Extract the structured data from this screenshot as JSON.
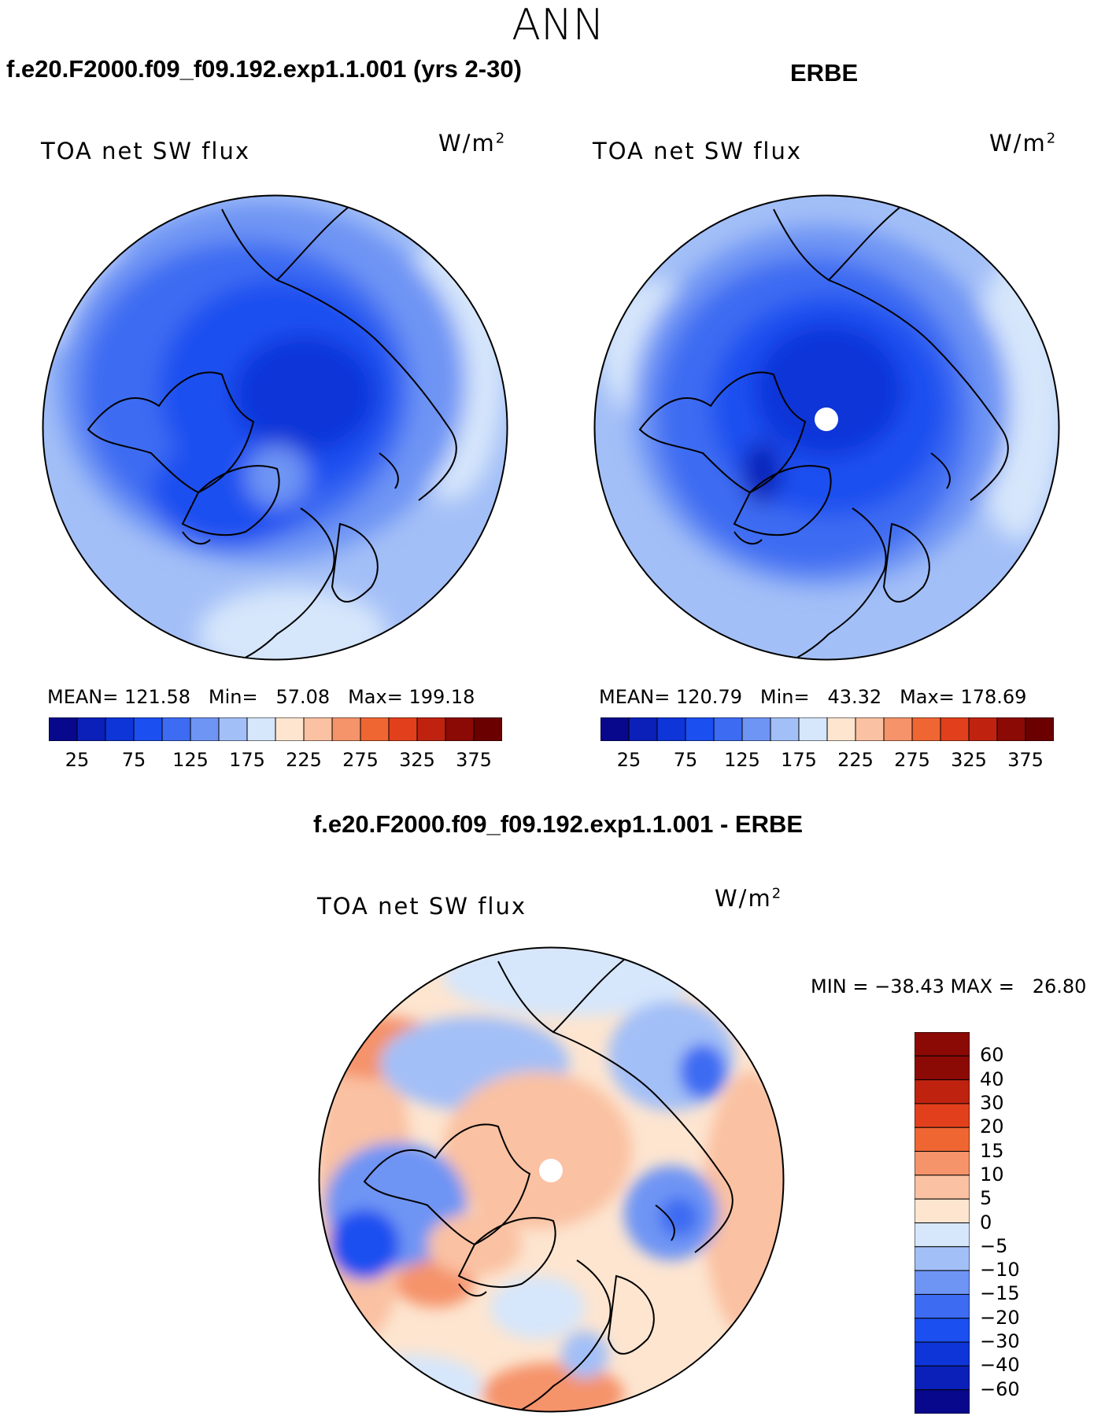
{
  "page": {
    "season": "ANN",
    "diff_title": "f.e20.F2000.f09_f09.192.exp1.1.001 - ERBE"
  },
  "panels": [
    {
      "title": "f.e20.F2000.f09_f09.192.exp1.1.001 (yrs 2-30)",
      "variable": "TOA net SW flux",
      "units": "W/m",
      "units_sup": "2",
      "mean_label": "MEAN=",
      "mean": "121.58",
      "min_label": "Min=",
      "min": "57.08",
      "max_label": "Max=",
      "max": "199.18"
    },
    {
      "title": "ERBE",
      "variable": "TOA net SW flux",
      "units": "W/m",
      "units_sup": "2",
      "mean_label": "MEAN=",
      "mean": "120.79",
      "min_label": "Min=",
      "min": "43.32",
      "max_label": "Max=",
      "max": "178.69"
    }
  ],
  "diff_panel": {
    "variable": "TOA net SW flux",
    "units": "W/m",
    "units_sup": "2",
    "minmax_text": "MIN = −38.43 MAX =   26.80"
  },
  "chart_data": [
    {
      "type": "heatmap",
      "projection": "north polar stereographic",
      "title": "f.e20.F2000.f09_f09.192.exp1.1.001 (yrs 2-30)",
      "subtitle": "TOA net SW flux",
      "units": "W/m2",
      "stats": {
        "mean": 121.58,
        "min": 57.08,
        "max": 199.18
      },
      "colorbar": {
        "tick_labels": [
          "25",
          "75",
          "125",
          "175",
          "225",
          "275",
          "325",
          "375"
        ],
        "levels": [
          25,
          50,
          75,
          100,
          125,
          150,
          175,
          200,
          225,
          250,
          275,
          300,
          325,
          350,
          375
        ],
        "colors": [
          "#08088c",
          "#0a20b8",
          "#0d35d8",
          "#1c4ff0",
          "#3d6cf2",
          "#6e94f4",
          "#a3bff7",
          "#d6e6fb",
          "#fde5d0",
          "#fac1a2",
          "#f5936a",
          "#ef6633",
          "#e2401c",
          "#bf2310",
          "#8c0a05",
          "#6b0000"
        ]
      }
    },
    {
      "type": "heatmap",
      "projection": "north polar stereographic",
      "title": "ERBE",
      "subtitle": "TOA net SW flux",
      "units": "W/m2",
      "stats": {
        "mean": 120.79,
        "min": 43.32,
        "max": 178.69
      },
      "colorbar": {
        "tick_labels": [
          "25",
          "75",
          "125",
          "175",
          "225",
          "275",
          "325",
          "375"
        ],
        "levels": [
          25,
          50,
          75,
          100,
          125,
          150,
          175,
          200,
          225,
          250,
          275,
          300,
          325,
          350,
          375
        ],
        "colors": [
          "#08088c",
          "#0a20b8",
          "#0d35d8",
          "#1c4ff0",
          "#3d6cf2",
          "#6e94f4",
          "#a3bff7",
          "#d6e6fb",
          "#fde5d0",
          "#fac1a2",
          "#f5936a",
          "#ef6633",
          "#e2401c",
          "#bf2310",
          "#8c0a05",
          "#6b0000"
        ]
      }
    },
    {
      "type": "heatmap",
      "projection": "north polar stereographic",
      "title": "f.e20.F2000.f09_f09.192.exp1.1.001 - ERBE",
      "subtitle": "TOA net SW flux",
      "units": "W/m2",
      "stats": {
        "min": -38.43,
        "max": 26.8
      },
      "colorbar": {
        "orientation": "vertical",
        "tick_labels": [
          "60",
          "40",
          "30",
          "20",
          "15",
          "10",
          "5",
          "0",
          "−5",
          "−10",
          "−15",
          "−20",
          "−30",
          "−40",
          "−60"
        ],
        "colors": [
          "#8c0a05",
          "#bf2310",
          "#e2401c",
          "#ef6633",
          "#f5936a",
          "#fac1a2",
          "#fde5d0",
          "#d6e6fb",
          "#a3bff7",
          "#6e94f4",
          "#3d6cf2",
          "#1c4ff0",
          "#0d35d8",
          "#0a20b8",
          "#08088c"
        ]
      }
    }
  ]
}
